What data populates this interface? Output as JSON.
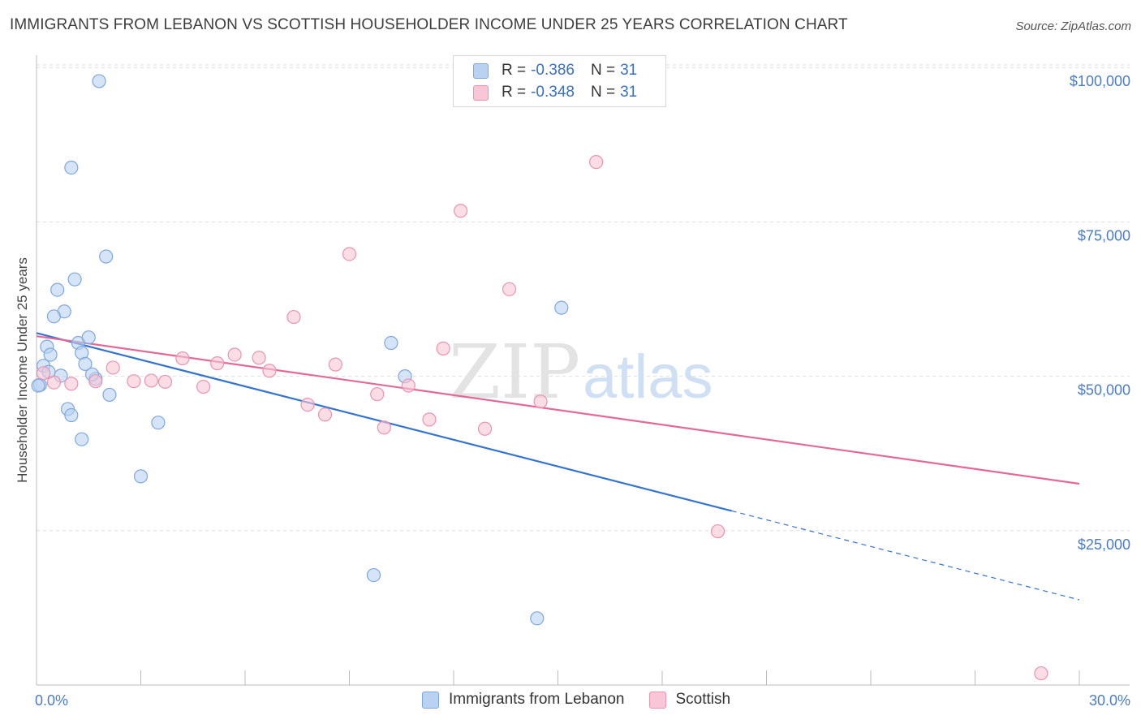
{
  "header": {
    "title": "IMMIGRANTS FROM LEBANON VS SCOTTISH HOUSEHOLDER INCOME UNDER 25 YEARS CORRELATION CHART",
    "source": "Source: ZipAtlas.com"
  },
  "watermark": {
    "zip": "ZIP",
    "atlas": "atlas"
  },
  "legend": {
    "rows": [
      {
        "r_label": "R = ",
        "r_value": "-0.386",
        "n_label": "N = ",
        "n_value": "31"
      },
      {
        "r_label": "R = ",
        "r_value": "-0.348",
        "n_label": "N = ",
        "n_value": "31"
      }
    ]
  },
  "colors": {
    "blue_fill": "#b9d2f2",
    "blue_stroke": "#7ea7de",
    "blue_line": "#3573d1",
    "pink_fill": "#f8c6d6",
    "pink_stroke": "#eb93b0",
    "pink_line": "#e36a96",
    "grid": "#dedede",
    "tick_text": "#4a7cc7"
  },
  "chart_data": {
    "type": "scatter",
    "title": "IMMIGRANTS FROM LEBANON VS SCOTTISH HOUSEHOLDER INCOME UNDER 25 YEARS CORRELATION CHART",
    "xlabel": "",
    "ylabel": "Householder Income Under 25 years",
    "xlim": [
      0,
      30
    ],
    "ylim": [
      0,
      102000
    ],
    "x_tick_labels": [
      "0.0%",
      "30.0%"
    ],
    "y_ticks": [
      25000,
      50000,
      75000,
      100000
    ],
    "y_tick_labels": [
      "$25,000",
      "$50,000",
      "$75,000",
      "$100,000"
    ],
    "grid": true,
    "legend_position": "top-center",
    "series": [
      {
        "name": "Immigrants from Lebanon",
        "color": "#b9d2f2",
        "points": [
          {
            "x": 1.8,
            "y": 97800
          },
          {
            "x": 1.0,
            "y": 83800
          },
          {
            "x": 2.0,
            "y": 69400
          },
          {
            "x": 1.1,
            "y": 65700
          },
          {
            "x": 0.6,
            "y": 64000
          },
          {
            "x": 0.8,
            "y": 60500
          },
          {
            "x": 0.5,
            "y": 59700
          },
          {
            "x": 0.3,
            "y": 54800
          },
          {
            "x": 0.4,
            "y": 53500
          },
          {
            "x": 1.2,
            "y": 55400
          },
          {
            "x": 1.5,
            "y": 56300
          },
          {
            "x": 1.3,
            "y": 53800
          },
          {
            "x": 1.4,
            "y": 52000
          },
          {
            "x": 0.2,
            "y": 51700
          },
          {
            "x": 0.7,
            "y": 50100
          },
          {
            "x": 1.7,
            "y": 49600
          },
          {
            "x": 0.1,
            "y": 48600
          },
          {
            "x": 2.1,
            "y": 47000
          },
          {
            "x": 0.9,
            "y": 44700
          },
          {
            "x": 1.0,
            "y": 43700
          },
          {
            "x": 3.5,
            "y": 42500
          },
          {
            "x": 1.3,
            "y": 39800
          },
          {
            "x": 3.0,
            "y": 33800
          },
          {
            "x": 10.2,
            "y": 55400
          },
          {
            "x": 10.6,
            "y": 50000
          },
          {
            "x": 15.1,
            "y": 61100
          },
          {
            "x": 9.7,
            "y": 17800
          },
          {
            "x": 14.4,
            "y": 10800
          },
          {
            "x": 0.05,
            "y": 48500
          },
          {
            "x": 1.6,
            "y": 50300
          },
          {
            "x": 0.35,
            "y": 50700
          }
        ]
      },
      {
        "name": "Scottish",
        "color": "#f8c6d6",
        "points": [
          {
            "x": 16.1,
            "y": 84700
          },
          {
            "x": 12.2,
            "y": 76800
          },
          {
            "x": 9.0,
            "y": 69800
          },
          {
            "x": 13.6,
            "y": 64100
          },
          {
            "x": 7.4,
            "y": 59600
          },
          {
            "x": 11.7,
            "y": 54500
          },
          {
            "x": 5.7,
            "y": 53500
          },
          {
            "x": 6.4,
            "y": 53000
          },
          {
            "x": 4.2,
            "y": 52900
          },
          {
            "x": 5.2,
            "y": 52100
          },
          {
            "x": 8.6,
            "y": 51900
          },
          {
            "x": 6.7,
            "y": 50900
          },
          {
            "x": 2.2,
            "y": 51400
          },
          {
            "x": 3.3,
            "y": 49300
          },
          {
            "x": 3.7,
            "y": 49100
          },
          {
            "x": 4.8,
            "y": 48300
          },
          {
            "x": 10.7,
            "y": 48500
          },
          {
            "x": 9.8,
            "y": 47100
          },
          {
            "x": 7.8,
            "y": 45400
          },
          {
            "x": 14.5,
            "y": 45900
          },
          {
            "x": 8.3,
            "y": 43800
          },
          {
            "x": 11.3,
            "y": 43000
          },
          {
            "x": 10.0,
            "y": 41700
          },
          {
            "x": 12.9,
            "y": 41500
          },
          {
            "x": 19.6,
            "y": 24900
          },
          {
            "x": 28.9,
            "y": 1900
          },
          {
            "x": 0.5,
            "y": 49000
          },
          {
            "x": 1.7,
            "y": 49200
          },
          {
            "x": 2.8,
            "y": 49200
          },
          {
            "x": 0.2,
            "y": 50500
          },
          {
            "x": 1.0,
            "y": 48800
          }
        ]
      }
    ],
    "trend_lines": [
      {
        "series": "Immigrants from Lebanon",
        "x0": 0,
        "y0": 57000,
        "x1": 20.0,
        "y1": 28200,
        "dash_to_x": 30,
        "dash_to_y": 13800
      },
      {
        "series": "Scottish",
        "x0": 0,
        "y0": 56500,
        "x1": 30,
        "y1": 32600
      }
    ]
  }
}
